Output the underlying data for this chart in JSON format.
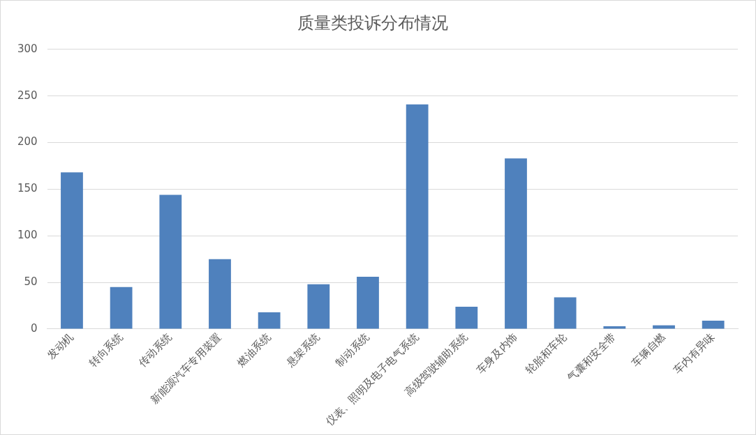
{
  "chart_data": {
    "type": "bar",
    "title": "质量类投诉分布情况",
    "categories": [
      "发动机",
      "转向系统",
      "传动系统",
      "新能源汽车专用装置",
      "燃油系统",
      "悬架系统",
      "制动系统",
      "仪表、照明及电子电气系统",
      "高级驾驶辅助系统",
      "车身及内饰",
      "轮胎和车轮",
      "气囊和安全带",
      "车辆自燃",
      "车内有异味"
    ],
    "values": [
      168,
      45,
      144,
      75,
      18,
      48,
      56,
      241,
      24,
      183,
      34,
      3,
      4,
      9
    ],
    "color": "#4f81bd",
    "ylim": [
      0,
      300
    ],
    "yticks": [
      0,
      50,
      100,
      150,
      200,
      250,
      300
    ],
    "grid": "y",
    "legend": false
  }
}
